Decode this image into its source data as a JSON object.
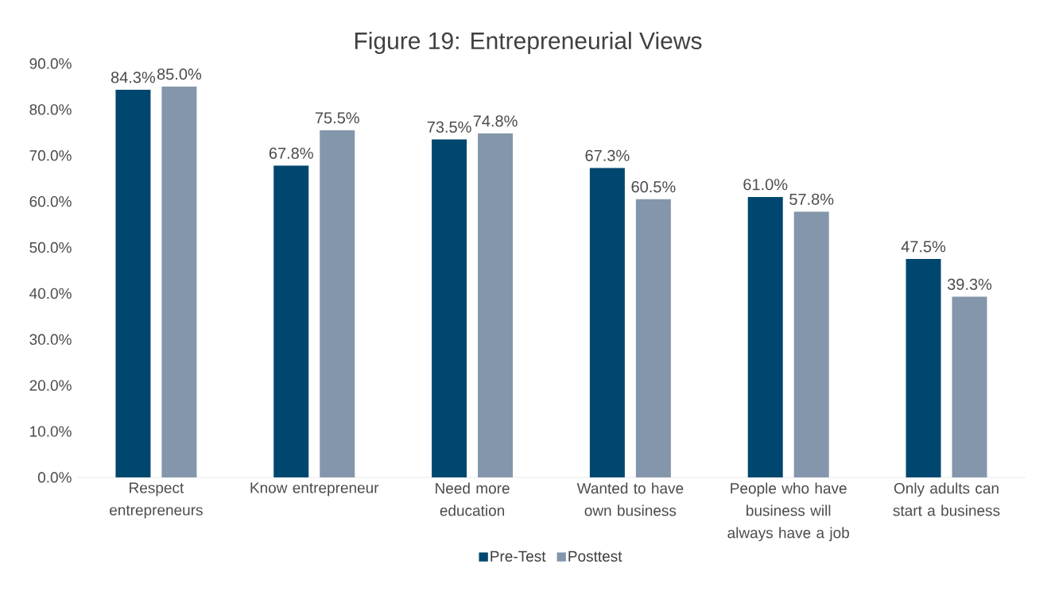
{
  "chart_data": {
    "type": "bar",
    "title": "Figure 19: Entrepreneurial Views",
    "categories": [
      "Respect entrepreneurs",
      "Know entrepreneur",
      "Need more education",
      "Wanted to have own business",
      "People who have business will always have a job",
      "Only adults can start a business"
    ],
    "series": [
      {
        "name": "Pre-Test",
        "color": "#00476f",
        "values": [
          84.3,
          67.8,
          73.5,
          67.3,
          61.0,
          47.5
        ],
        "value_labels": [
          "84.3%",
          "67.8%",
          "73.5%",
          "67.3%",
          "61.0%",
          "47.5%"
        ]
      },
      {
        "name": "Posttest",
        "color": "#8496ab",
        "values": [
          85.0,
          75.5,
          74.8,
          60.5,
          57.8,
          39.3
        ],
        "value_labels": [
          "85.0%",
          "75.5%",
          "74.8%",
          "60.5%",
          "57.8%",
          "39.3%"
        ]
      }
    ],
    "ylim": [
      0,
      90
    ],
    "yticks": [
      {
        "value": 0,
        "label": "0.0%"
      },
      {
        "value": 10,
        "label": "10.0%"
      },
      {
        "value": 20,
        "label": "20.0%"
      },
      {
        "value": 30,
        "label": "30.0%"
      },
      {
        "value": 40,
        "label": "40.0%"
      },
      {
        "value": 50,
        "label": "50.0%"
      },
      {
        "value": 60,
        "label": "60.0%"
      },
      {
        "value": 70,
        "label": "70.0%"
      },
      {
        "value": 80,
        "label": "80.0%"
      },
      {
        "value": 90,
        "label": "90.0%"
      }
    ],
    "legend": "bottom",
    "grid": false
  }
}
